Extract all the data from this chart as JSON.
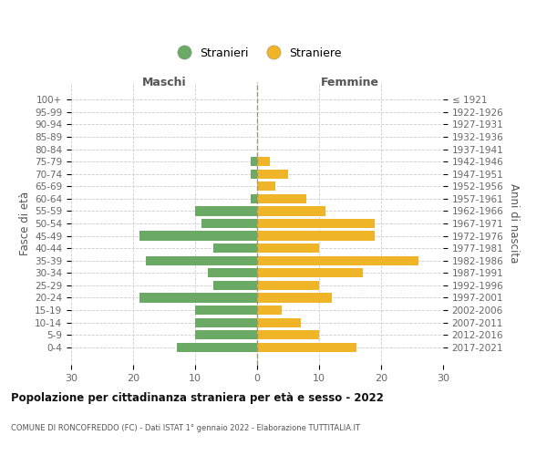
{
  "age_groups": [
    "100+",
    "95-99",
    "90-94",
    "85-89",
    "80-84",
    "75-79",
    "70-74",
    "65-69",
    "60-64",
    "55-59",
    "50-54",
    "45-49",
    "40-44",
    "35-39",
    "30-34",
    "25-29",
    "20-24",
    "15-19",
    "10-14",
    "5-9",
    "0-4"
  ],
  "birth_years": [
    "≤ 1921",
    "1922-1926",
    "1927-1931",
    "1932-1936",
    "1937-1941",
    "1942-1946",
    "1947-1951",
    "1952-1956",
    "1957-1961",
    "1962-1966",
    "1967-1971",
    "1972-1976",
    "1977-1981",
    "1982-1986",
    "1987-1991",
    "1992-1996",
    "1997-2001",
    "2002-2006",
    "2007-2011",
    "2012-2016",
    "2017-2021"
  ],
  "maschi": [
    0,
    0,
    0,
    0,
    0,
    1,
    1,
    0,
    1,
    10,
    9,
    19,
    7,
    18,
    8,
    7,
    19,
    10,
    10,
    10,
    13
  ],
  "femmine": [
    0,
    0,
    0,
    0,
    0,
    2,
    5,
    3,
    8,
    11,
    19,
    19,
    10,
    26,
    17,
    10,
    12,
    4,
    7,
    10,
    16
  ],
  "maschi_color": "#6aaa64",
  "femmine_color": "#f0b429",
  "title": "Popolazione per cittadinanza straniera per età e sesso - 2022",
  "subtitle": "COMUNE DI RONCOFREDDO (FC) - Dati ISTAT 1° gennaio 2022 - Elaborazione TUTTITALIA.IT",
  "ylabel_left": "Fasce di età",
  "ylabel_right": "Anni di nascita",
  "xlabel_maschi": "Maschi",
  "xlabel_femmine": "Femmine",
  "legend_maschi": "Stranieri",
  "legend_femmine": "Straniere",
  "xlim": 30,
  "background_color": "#ffffff",
  "grid_color": "#cccccc",
  "bar_height": 0.75
}
